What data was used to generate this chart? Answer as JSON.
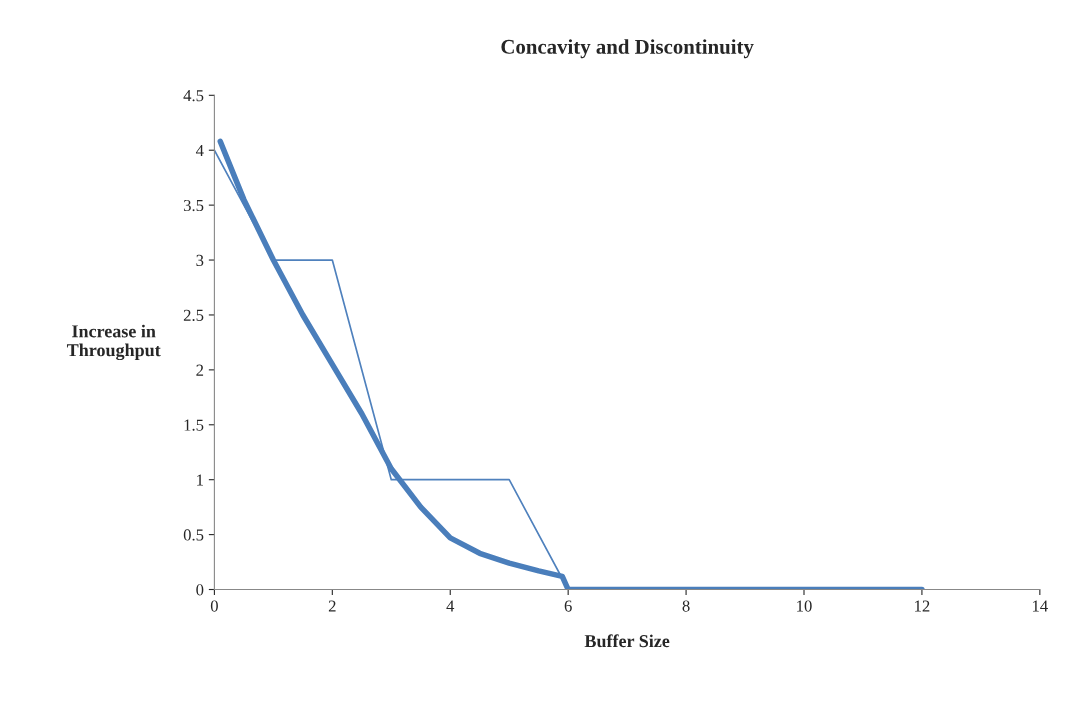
{
  "chart_data": {
    "type": "line",
    "title": "Concavity and Discontinuity",
    "xlabel": "Buffer Size",
    "ylabel": "Increase in\nThroughput",
    "series": [
      {
        "color": "#4f81bd",
        "x": [
          0,
          1,
          2,
          3,
          5,
          6,
          12
        ],
        "values": [
          4,
          3,
          3,
          1,
          1,
          0,
          0
        ]
      },
      {
        "color": "#4a7ebb",
        "x": [
          0.1,
          0.5,
          1,
          1.5,
          2,
          2.5,
          3,
          3.5,
          4,
          4.5,
          5,
          5.5,
          5.9,
          6,
          12
        ],
        "values": [
          4.08,
          3.55,
          3.0,
          2.5,
          2.05,
          1.6,
          1.1,
          0.75,
          0.47,
          0.33,
          0.24,
          0.17,
          0.12,
          0,
          0
        ]
      }
    ],
    "xlim": [
      0,
      14
    ],
    "xticks": [
      0,
      2,
      4,
      6,
      8,
      10,
      12,
      14
    ],
    "ylim": [
      0,
      4.5
    ],
    "yticks": [
      0,
      0.5,
      1,
      1.5,
      2,
      2.5,
      3,
      3.5,
      4,
      4.5
    ],
    "grid": false,
    "legend": false,
    "marker": "none",
    "line_style": "solid"
  }
}
